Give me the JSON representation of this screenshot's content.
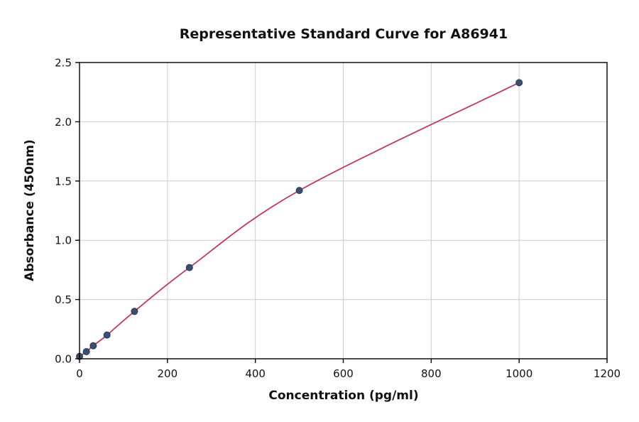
{
  "chart_data": {
    "type": "line",
    "title": "Representative Standard Curve for A86941",
    "xlabel": "Concentration (pg/ml)",
    "ylabel": "Absorbance (450nm)",
    "xlim": [
      0,
      1200
    ],
    "ylim": [
      0,
      2.5
    ],
    "xticks": [
      0,
      200,
      400,
      600,
      800,
      1000,
      1200
    ],
    "xtick_labels": [
      "0",
      "200",
      "400",
      "600",
      "800",
      "1000",
      "1200"
    ],
    "yticks": [
      0,
      0.5,
      1.0,
      1.5,
      2.0,
      2.5
    ],
    "ytick_labels": [
      "0.0",
      "0.5",
      "1.0",
      "1.5",
      "2.0",
      "2.5"
    ],
    "grid": true,
    "legend": "none",
    "series": [
      {
        "name": "standard-curve",
        "x": [
          0,
          15.6,
          31.25,
          62.5,
          125,
          250,
          500,
          1000
        ],
        "y": [
          0.02,
          0.06,
          0.11,
          0.2,
          0.4,
          0.77,
          1.42,
          2.33
        ],
        "line_color": "#c0395f",
        "marker_color": "#3b4d71",
        "marker_edge_color": "#273750"
      }
    ],
    "colors": {
      "grid": "#cccccc",
      "frame": "#000000",
      "background": "#ffffff"
    }
  }
}
